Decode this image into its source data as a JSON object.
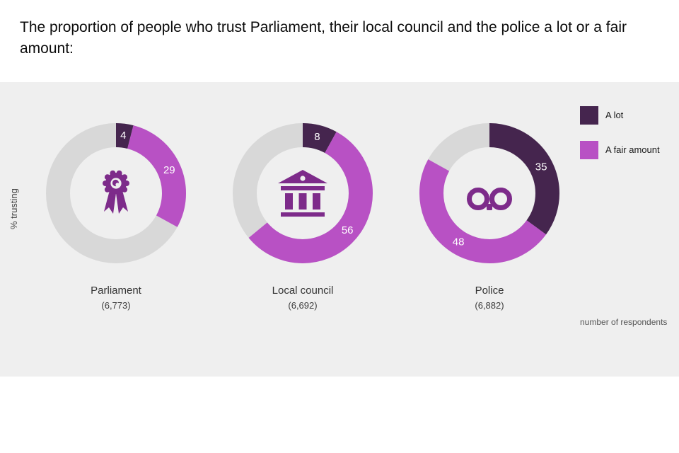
{
  "page": {
    "title": "The proportion of people who trust Parliament, their local council and the police a lot or a fair amount:",
    "y_axis_label": "% trusting",
    "respondents_note": "number of respondents"
  },
  "legend": {
    "items": [
      {
        "label": "A lot",
        "color": "#45254e"
      },
      {
        "label": "A fair amount",
        "color": "#b851c4"
      }
    ]
  },
  "chart_data": {
    "type": "pie",
    "subtype": "donut",
    "unit": "percent",
    "ylabel": "% trusting",
    "legend_position": "top-right",
    "series_labels": [
      "A lot",
      "A fair amount"
    ],
    "colors": {
      "a_lot": "#45254e",
      "a_fair_amount": "#b851c4",
      "remainder": "#d8d8d8",
      "icon": "#7d2b8a",
      "panel_background": "#efefef"
    },
    "charts": [
      {
        "label": "Parliament",
        "respondents": "(6,773)",
        "icon": "rosette-icon",
        "segments": [
          {
            "name": "A lot",
            "value": 4
          },
          {
            "name": "A fair amount",
            "value": 29
          }
        ]
      },
      {
        "label": "Local council",
        "respondents": "(6,692)",
        "icon": "bank-icon",
        "segments": [
          {
            "name": "A lot",
            "value": 8
          },
          {
            "name": "A fair amount",
            "value": 56
          }
        ]
      },
      {
        "label": "Police",
        "respondents": "(6,882)",
        "icon": "handcuffs-icon",
        "segments": [
          {
            "name": "A lot",
            "value": 35
          },
          {
            "name": "A fair amount",
            "value": 48
          }
        ]
      }
    ]
  }
}
